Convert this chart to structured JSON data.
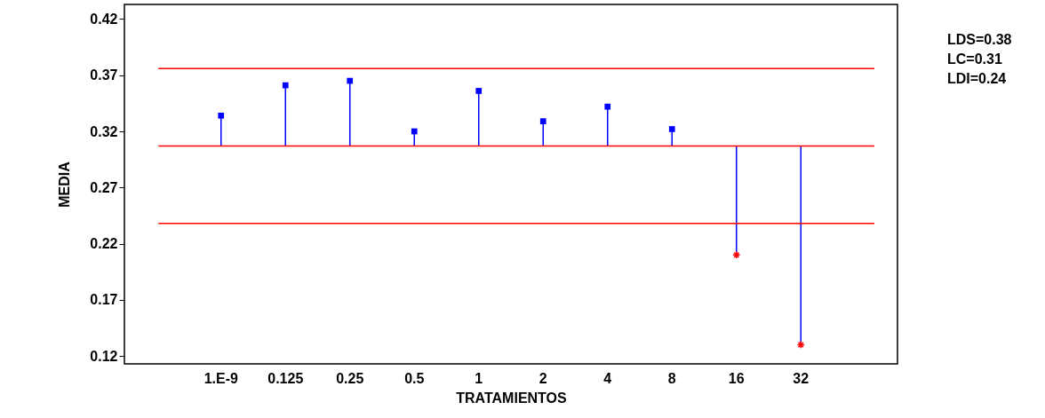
{
  "chart_data": {
    "type": "lollipop",
    "xlabel": "TRATAMIENTOS",
    "ylabel": "MEDIA",
    "categories": [
      "1.E-9",
      "0.125",
      "0.25",
      "0.5",
      "1",
      "2",
      "4",
      "8",
      "16",
      "32"
    ],
    "series": [
      {
        "color": "#0000ff",
        "marker": "square",
        "values": [
          0.334,
          0.361,
          0.365,
          0.32,
          0.356,
          0.329,
          0.342,
          0.322,
          null,
          null
        ],
        "errors": [
          [
            0.307,
            0.334
          ],
          [
            0.307,
            0.361
          ],
          [
            0.307,
            0.365
          ],
          [
            0.307,
            0.32
          ],
          [
            0.307,
            0.356
          ],
          [
            0.307,
            0.329
          ],
          [
            0.307,
            0.342
          ],
          [
            0.307,
            0.322
          ],
          null,
          null
        ]
      },
      {
        "color": "#ff0000",
        "marker": "cross",
        "values": [
          null,
          null,
          null,
          null,
          null,
          null,
          null,
          null,
          0.21,
          0.13
        ],
        "errors": [
          null,
          null,
          null,
          null,
          null,
          null,
          null,
          null,
          [
            0.21,
            0.307
          ],
          [
            0.13,
            0.307
          ]
        ]
      }
    ],
    "ylim": [
      0.113,
      0.433
    ],
    "yticks": [
      0.12,
      0.17,
      0.22,
      0.27,
      0.32,
      0.37,
      0.42
    ],
    "ref_lines": [
      {
        "axis": "y",
        "value": 0.376,
        "color": "#ff0000"
      },
      {
        "axis": "y",
        "value": 0.307,
        "color": "#ff0000"
      },
      {
        "axis": "y",
        "value": 0.238,
        "color": "#ff0000"
      }
    ],
    "annotations": [
      "LDS=0.38",
      "LC=0.31",
      "LDI=0.24"
    ],
    "grid": false
  }
}
